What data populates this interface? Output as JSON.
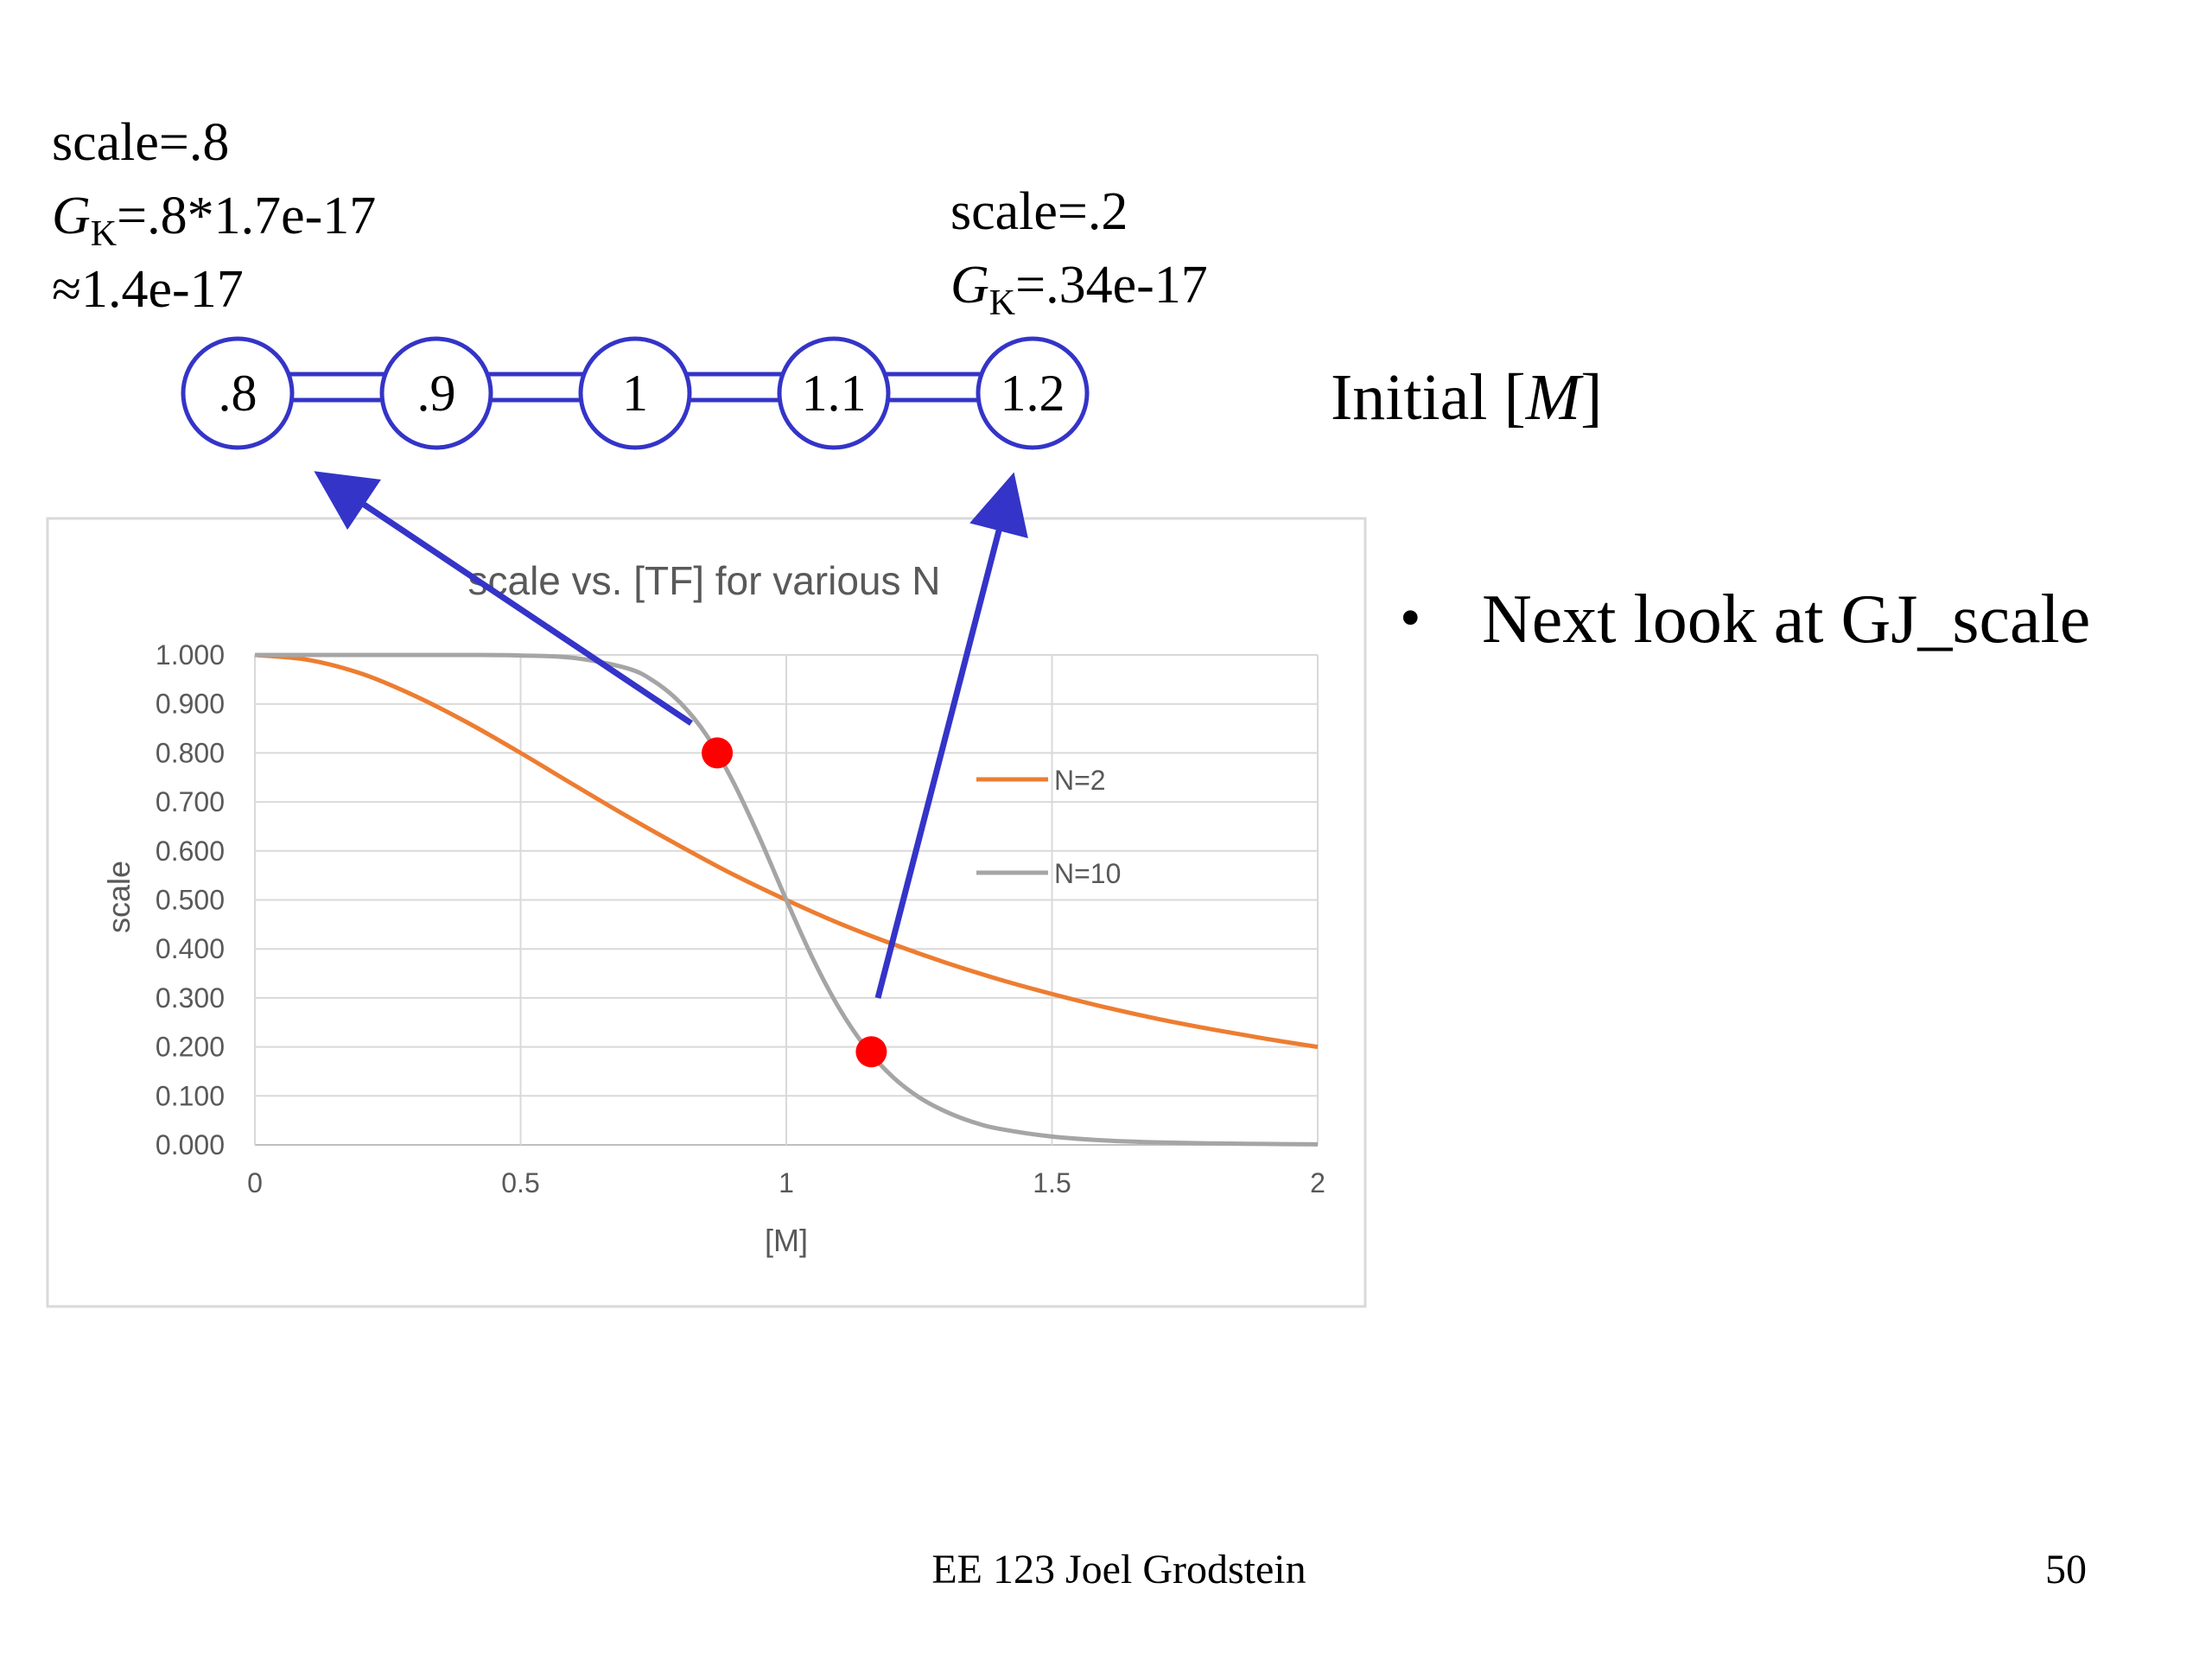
{
  "left_note": {
    "line1": "scale=.8",
    "line2_sym": "G",
    "line2_sub": "K",
    "line2_rest": "=.8*1.7e-17",
    "line3": "≈1.4e-17"
  },
  "right_note": {
    "line1": "scale=.2",
    "line2_sym": "G",
    "line2_sub": "K",
    "line2_rest": "=.34e-17"
  },
  "nodes": [
    ".8",
    ".9",
    "1",
    "1.1",
    "1.2"
  ],
  "initial_label": {
    "prefix": "Initial [",
    "var": "M",
    "suffix": "]"
  },
  "bullet": {
    "mark": "•",
    "text": "Next look at GJ_scale"
  },
  "footer": {
    "center": "EE 123 Joel Grodstein",
    "page": "50"
  },
  "colors": {
    "node_stroke": "#3434c8",
    "arrow": "#3434c8",
    "n2": "#ed7d31",
    "n10": "#a5a5a5",
    "marker": "#ff0000"
  },
  "chart_data": {
    "type": "line",
    "title": "scale vs. [TF] for various N",
    "xlabel": "[M]",
    "ylabel": "scale",
    "xlim": [
      0,
      2
    ],
    "ylim": [
      0,
      1
    ],
    "x_ticks": [
      "0",
      "0.5",
      "1",
      "1.5",
      "2"
    ],
    "x_tick_values": [
      0,
      0.5,
      1,
      1.5,
      2
    ],
    "y_ticks": [
      "0.000",
      "0.100",
      "0.200",
      "0.300",
      "0.400",
      "0.500",
      "0.600",
      "0.700",
      "0.800",
      "0.900",
      "1.000"
    ],
    "y_tick_values": [
      0,
      0.1,
      0.2,
      0.3,
      0.4,
      0.5,
      0.6,
      0.7,
      0.8,
      0.9,
      1.0
    ],
    "grid": true,
    "legend": "right",
    "series": [
      {
        "name": "N=2",
        "color": "#ed7d31",
        "x": [
          0,
          0.1,
          0.2,
          0.3,
          0.4,
          0.5,
          0.6,
          0.7,
          0.8,
          0.9,
          1.0,
          1.1,
          1.2,
          1.3,
          1.4,
          1.5,
          1.6,
          1.7,
          1.8,
          1.9,
          2.0
        ],
        "y": [
          1.0,
          0.99,
          0.962,
          0.917,
          0.862,
          0.8,
          0.735,
          0.671,
          0.61,
          0.552,
          0.5,
          0.452,
          0.41,
          0.372,
          0.338,
          0.308,
          0.281,
          0.257,
          0.236,
          0.217,
          0.2
        ]
      },
      {
        "name": "N=10",
        "color": "#a5a5a5",
        "x": [
          0,
          0.1,
          0.2,
          0.3,
          0.4,
          0.5,
          0.6,
          0.7,
          0.75,
          0.8,
          0.85,
          0.9,
          0.95,
          1.0,
          1.05,
          1.1,
          1.15,
          1.2,
          1.25,
          1.3,
          1.35,
          1.4,
          1.5,
          1.6,
          1.7,
          1.8,
          1.9,
          2.0
        ],
        "y": [
          1.0,
          1.0,
          1.0,
          1.0,
          1.0,
          0.999,
          0.994,
          0.973,
          0.947,
          0.903,
          0.836,
          0.741,
          0.626,
          0.5,
          0.38,
          0.278,
          0.198,
          0.139,
          0.097,
          0.068,
          0.047,
          0.033,
          0.017,
          0.009,
          0.005,
          0.003,
          0.002,
          0.001
        ]
      }
    ],
    "highlight_points": [
      {
        "x": 0.87,
        "y": 0.8
      },
      {
        "x": 1.16,
        "y": 0.19
      }
    ]
  }
}
